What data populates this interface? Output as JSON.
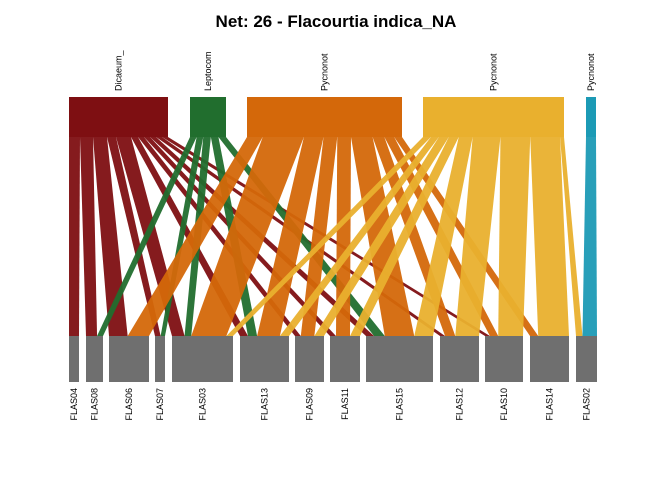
{
  "title": "Net: 26 - Flacourtia indica_NA",
  "higher": [
    {
      "label": "Dicaeum_",
      "color": "#7e0f12"
    },
    {
      "label": "Leptocom",
      "color": "#216e2e"
    },
    {
      "label": "Pycnonot",
      "color": "#d4680a"
    },
    {
      "label": "Pycnonot",
      "color": "#e9b02e"
    },
    {
      "label": "Pycnonot",
      "color": "#1c9ab5"
    }
  ],
  "lower": [
    {
      "label": "FLAS04"
    },
    {
      "label": "FLAS08"
    },
    {
      "label": "FLAS06"
    },
    {
      "label": "FLAS07"
    },
    {
      "label": "FLAS03"
    },
    {
      "label": "FLAS13"
    },
    {
      "label": "FLAS09"
    },
    {
      "label": "FLAS11"
    },
    {
      "label": "FLAS15"
    },
    {
      "label": "FLAS12"
    },
    {
      "label": "FLAS10"
    },
    {
      "label": "FLAS14"
    },
    {
      "label": "FLAS02"
    }
  ],
  "lower_color": "#6f6f6f",
  "links": [
    {
      "h": 0,
      "l": 0,
      "w": 11
    },
    {
      "h": 0,
      "l": 1,
      "w": 13
    },
    {
      "h": 0,
      "l": 2,
      "w": 14
    },
    {
      "h": 0,
      "l": 3,
      "w": 9
    },
    {
      "h": 0,
      "l": 4,
      "w": 15
    },
    {
      "h": 0,
      "l": 5,
      "w": 7
    },
    {
      "h": 0,
      "l": 6,
      "w": 6
    },
    {
      "h": 0,
      "l": 7,
      "w": 6
    },
    {
      "h": 0,
      "l": 8,
      "w": 6
    },
    {
      "h": 0,
      "l": 9,
      "w": 6
    },
    {
      "h": 0,
      "l": 10,
      "w": 6
    },
    {
      "h": 1,
      "l": 1,
      "w": 7
    },
    {
      "h": 1,
      "l": 3,
      "w": 7
    },
    {
      "h": 1,
      "l": 4,
      "w": 8
    },
    {
      "h": 1,
      "l": 5,
      "w": 8
    },
    {
      "h": 1,
      "l": 8,
      "w": 8
    },
    {
      "h": 2,
      "l": 2,
      "w": 16
    },
    {
      "h": 2,
      "l": 4,
      "w": 42
    },
    {
      "h": 2,
      "l": 5,
      "w": 20
    },
    {
      "h": 2,
      "l": 6,
      "w": 14
    },
    {
      "h": 2,
      "l": 7,
      "w": 14
    },
    {
      "h": 2,
      "l": 8,
      "w": 22
    },
    {
      "h": 2,
      "l": 9,
      "w": 12
    },
    {
      "h": 2,
      "l": 10,
      "w": 10
    },
    {
      "h": 2,
      "l": 11,
      "w": 8
    },
    {
      "h": 3,
      "l": 4,
      "w": 8
    },
    {
      "h": 3,
      "l": 5,
      "w": 8
    },
    {
      "h": 3,
      "l": 6,
      "w": 10
    },
    {
      "h": 3,
      "l": 7,
      "w": 10
    },
    {
      "h": 3,
      "l": 8,
      "w": 14
    },
    {
      "h": 3,
      "l": 9,
      "w": 28
    },
    {
      "h": 3,
      "l": 10,
      "w": 30
    },
    {
      "h": 3,
      "l": 11,
      "w": 30
    },
    {
      "h": 3,
      "l": 12,
      "w": 4
    },
    {
      "h": 4,
      "l": 12,
      "w": 9
    }
  ]
}
